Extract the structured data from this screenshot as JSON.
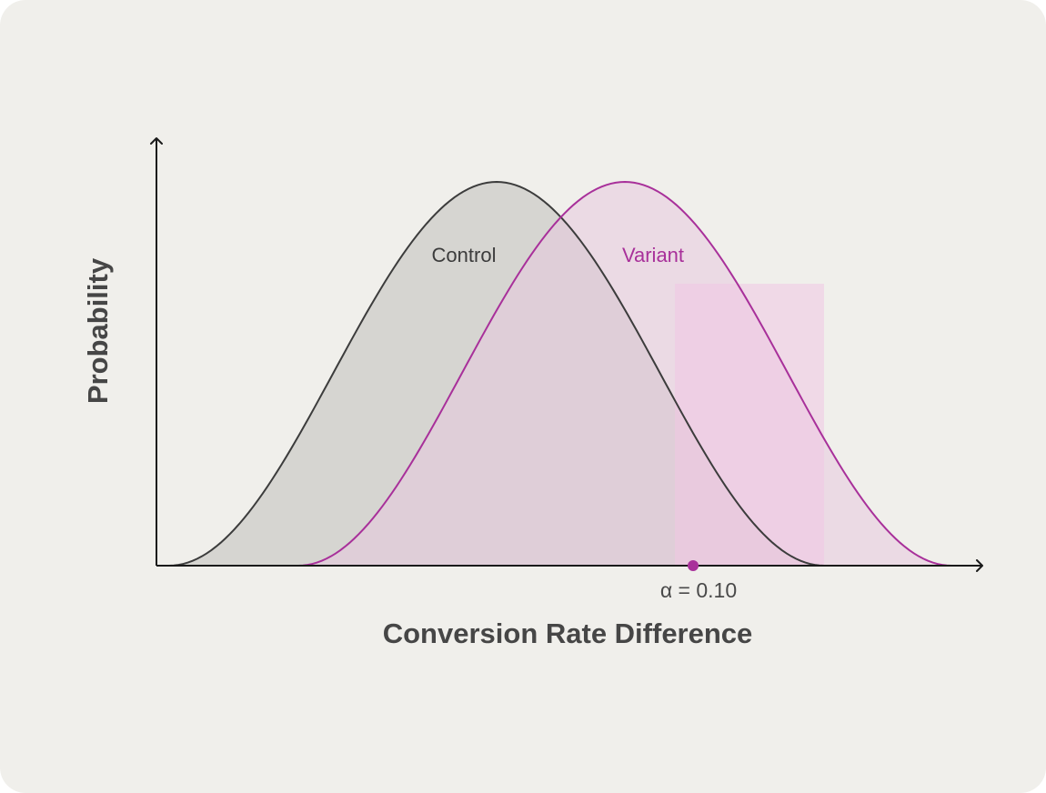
{
  "diagram": {
    "y_axis_label": "Probability",
    "x_axis_label": "Conversion Rate Difference",
    "curves": [
      {
        "label": "Control",
        "stroke": "#3c3c3c",
        "fill": "#d6d5d1"
      },
      {
        "label": "Variant",
        "stroke": "#a8309a",
        "fill": "#e8c9df"
      }
    ],
    "threshold": {
      "label": "α = 0.10",
      "marker_color": "#a8309a",
      "region_color": "#f0c6e4"
    }
  }
}
